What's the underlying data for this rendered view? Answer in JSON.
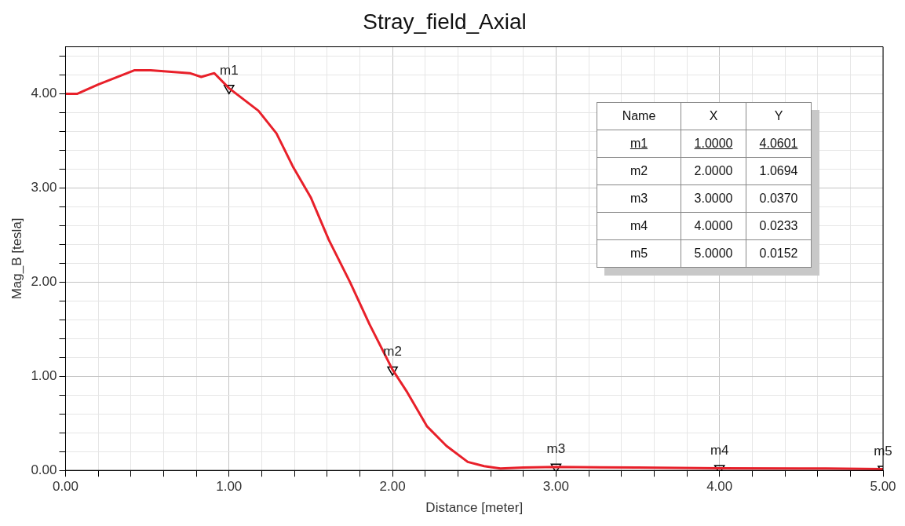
{
  "chart_data": {
    "type": "line",
    "title": "Stray_field_Axial",
    "xlabel": "Distance [meter]",
    "ylabel": "Mag_B [tesla]",
    "legend": false,
    "grid": true,
    "xlim": [
      0,
      5
    ],
    "ylim": [
      0,
      4.5
    ],
    "xticks": [
      {
        "value": 0,
        "label": "0.00"
      },
      {
        "value": 0.2,
        "label": null
      },
      {
        "value": 0.4,
        "label": null
      },
      {
        "value": 0.6,
        "label": null
      },
      {
        "value": 0.8,
        "label": null
      },
      {
        "value": 1,
        "label": "1.00"
      },
      {
        "value": 1.2,
        "label": null
      },
      {
        "value": 1.4,
        "label": null
      },
      {
        "value": 1.6,
        "label": null
      },
      {
        "value": 1.8,
        "label": null
      },
      {
        "value": 2,
        "label": "2.00"
      },
      {
        "value": 2.2,
        "label": null
      },
      {
        "value": 2.4,
        "label": null
      },
      {
        "value": 2.6,
        "label": null
      },
      {
        "value": 2.8,
        "label": null
      },
      {
        "value": 3,
        "label": "3.00"
      },
      {
        "value": 3.2,
        "label": null
      },
      {
        "value": 3.4,
        "label": null
      },
      {
        "value": 3.6,
        "label": null
      },
      {
        "value": 3.8,
        "label": null
      },
      {
        "value": 4,
        "label": "4.00"
      },
      {
        "value": 4.2,
        "label": null
      },
      {
        "value": 4.4,
        "label": null
      },
      {
        "value": 4.6,
        "label": null
      },
      {
        "value": 4.8,
        "label": null
      },
      {
        "value": 5,
        "label": "5.00"
      }
    ],
    "yticks": [
      {
        "value": 0,
        "label": "0.00"
      },
      {
        "value": 0.2,
        "label": null
      },
      {
        "value": 0.4,
        "label": null
      },
      {
        "value": 0.6,
        "label": null
      },
      {
        "value": 0.8,
        "label": null
      },
      {
        "value": 1,
        "label": "1.00"
      },
      {
        "value": 1.2,
        "label": null
      },
      {
        "value": 1.4,
        "label": null
      },
      {
        "value": 1.6,
        "label": null
      },
      {
        "value": 1.8,
        "label": null
      },
      {
        "value": 2,
        "label": "2.00"
      },
      {
        "value": 2.2,
        "label": null
      },
      {
        "value": 2.4,
        "label": null
      },
      {
        "value": 2.6,
        "label": null
      },
      {
        "value": 2.8,
        "label": null
      },
      {
        "value": 3,
        "label": "3.00"
      },
      {
        "value": 3.2,
        "label": null
      },
      {
        "value": 3.4,
        "label": null
      },
      {
        "value": 3.6,
        "label": null
      },
      {
        "value": 3.8,
        "label": null
      },
      {
        "value": 4,
        "label": "4.00"
      },
      {
        "value": 4.2,
        "label": null
      },
      {
        "value": 4.4,
        "label": null
      }
    ],
    "series": [
      {
        "color": "#e8202a",
        "line_style": "solid",
        "marker": "none",
        "x": [
          0,
          0.07,
          0.2,
          0.42,
          0.52,
          0.76,
          0.83,
          0.91,
          1.0,
          1.18,
          1.29,
          1.39,
          1.5,
          1.61,
          1.74,
          1.86,
          2.0,
          2.09,
          2.21,
          2.33,
          2.46,
          2.56,
          2.66,
          2.8,
          3.0,
          3.5,
          4.0,
          4.5,
          4.65,
          5.0
        ],
        "values": [
          4.0,
          4.0,
          4.1,
          4.25,
          4.25,
          4.22,
          4.18,
          4.22,
          4.06,
          3.82,
          3.58,
          3.23,
          2.9,
          2.45,
          2.0,
          1.55,
          1.07,
          0.83,
          0.47,
          0.26,
          0.09,
          0.045,
          0.02,
          0.03,
          0.037,
          0.03,
          0.023,
          0.02,
          0.02,
          0.0152
        ]
      },
      {
        "type": "scatter",
        "color": "#000000",
        "marker": "triangle",
        "x": [
          1,
          2,
          3,
          4,
          5
        ],
        "values": [
          4.0601,
          1.0694,
          0.037,
          0.0233,
          0.0152
        ]
      }
    ],
    "annotations": [
      "Name",
      "X",
      "Y",
      "m1",
      "1.0000",
      "4.0601",
      "m2",
      "2.0000",
      "1.0694",
      "m3",
      "3.0000",
      "0.0370",
      "m4",
      "4.0000",
      "0.0233",
      "m5",
      "5.0000",
      "0.0152",
      {
        "text": "m1",
        "x": 1,
        "y": 4.0601
      },
      {
        "text": "m2",
        "x": 2,
        "y": 1.0694
      },
      {
        "text": "m3",
        "x": 3,
        "y": 0.037
      },
      {
        "text": "m4",
        "x": 4,
        "y": 0.0233
      },
      {
        "text": "m5",
        "x": 5,
        "y": 0.0152
      }
    ]
  }
}
